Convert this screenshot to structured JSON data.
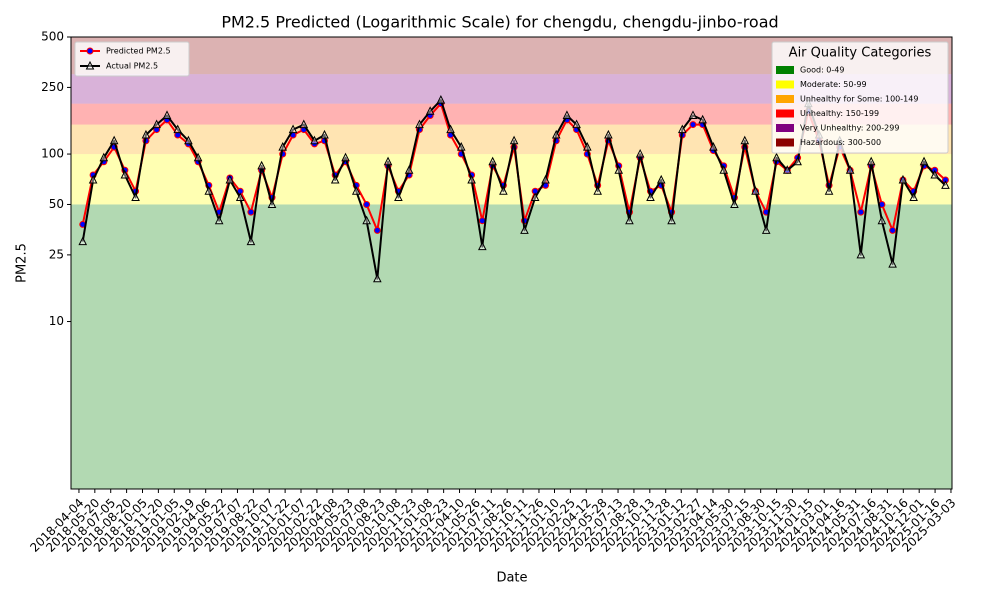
{
  "chart_data": {
    "type": "line",
    "title": "PM2.5 Predicted (Logarithmic Scale) for chengdu, chengdu-jinbo-road",
    "x_label": "Date",
    "y_label": "PM2.5",
    "log_scale": true,
    "ylim": [
      1,
      500
    ],
    "yticks": [
      10,
      25,
      50,
      100,
      250,
      500
    ],
    "xlim": [
      "2018-03-12",
      "2025-03-06"
    ],
    "xticks": [
      "2018-04-04",
      "2018-05-20",
      "2018-07-05",
      "2018-08-20",
      "2018-10-05",
      "2018-11-20",
      "2019-01-05",
      "2019-02-19",
      "2019-04-06",
      "2019-05-22",
      "2019-07-07",
      "2019-08-22",
      "2019-10-07",
      "2019-11-22",
      "2020-01-07",
      "2020-02-22",
      "2020-04-08",
      "2020-05-23",
      "2020-07-08",
      "2020-08-23",
      "2020-10-08",
      "2020-11-23",
      "2021-01-08",
      "2021-02-23",
      "2021-04-10",
      "2021-05-26",
      "2021-07-11",
      "2021-08-26",
      "2021-10-11",
      "2021-11-26",
      "2022-01-10",
      "2022-02-25",
      "2022-04-12",
      "2022-05-28",
      "2022-07-13",
      "2022-08-28",
      "2022-10-13",
      "2022-11-28",
      "2023-01-12",
      "2023-02-27",
      "2023-04-14",
      "2023-05-30",
      "2023-07-15",
      "2023-08-30",
      "2023-10-15",
      "2023-11-30",
      "2024-01-15",
      "2024-03-01",
      "2024-04-16",
      "2024-05-31",
      "2024-07-16",
      "2024-08-31",
      "2024-10-16",
      "2024-12-01",
      "2025-01-16",
      "2025-03-03"
    ],
    "x": [
      "2018-04-15",
      "2018-05-15",
      "2018-06-15",
      "2018-07-15",
      "2018-08-15",
      "2018-09-15",
      "2018-10-15",
      "2018-11-15",
      "2018-12-15",
      "2019-01-15",
      "2019-02-15",
      "2019-03-15",
      "2019-04-15",
      "2019-05-15",
      "2019-06-15",
      "2019-07-15",
      "2019-08-15",
      "2019-09-15",
      "2019-10-15",
      "2019-11-15",
      "2019-12-15",
      "2020-01-15",
      "2020-02-15",
      "2020-03-15",
      "2020-04-15",
      "2020-05-15",
      "2020-06-15",
      "2020-07-15",
      "2020-08-15",
      "2020-09-15",
      "2020-10-15",
      "2020-11-15",
      "2020-12-15",
      "2021-01-15",
      "2021-02-15",
      "2021-03-15",
      "2021-04-15",
      "2021-05-15",
      "2021-06-15",
      "2021-07-15",
      "2021-08-15",
      "2021-09-15",
      "2021-10-15",
      "2021-11-15",
      "2021-12-15",
      "2022-01-15",
      "2022-02-15",
      "2022-03-15",
      "2022-04-15",
      "2022-05-15",
      "2022-06-15",
      "2022-07-15",
      "2022-08-15",
      "2022-09-15",
      "2022-10-15",
      "2022-11-15",
      "2022-12-15",
      "2023-01-15",
      "2023-02-15",
      "2023-03-15",
      "2023-04-15",
      "2023-05-15",
      "2023-06-15",
      "2023-07-15",
      "2023-08-15",
      "2023-09-15",
      "2023-10-15",
      "2023-11-15",
      "2023-12-15",
      "2024-01-15",
      "2024-02-15",
      "2024-03-15",
      "2024-04-15",
      "2024-05-15",
      "2024-06-15",
      "2024-07-15",
      "2024-08-15",
      "2024-09-15",
      "2024-10-15",
      "2024-11-15",
      "2024-12-15",
      "2025-01-15",
      "2025-02-15"
    ],
    "series": [
      {
        "name": "Predicted PM2.5",
        "color": "#ff0000",
        "marker": "circle",
        "marker_color": "#0000ff",
        "values": [
          38,
          75,
          90,
          110,
          80,
          60,
          120,
          140,
          160,
          130,
          115,
          90,
          65,
          45,
          72,
          60,
          45,
          80,
          55,
          100,
          130,
          140,
          115,
          120,
          75,
          90,
          65,
          50,
          35,
          85,
          60,
          75,
          140,
          170,
          200,
          130,
          100,
          75,
          40,
          85,
          65,
          110,
          40,
          60,
          65,
          120,
          160,
          140,
          100,
          65,
          120,
          85,
          45,
          95,
          60,
          65,
          45,
          130,
          150,
          150,
          105,
          85,
          55,
          110,
          60,
          45,
          90,
          80,
          95,
          180,
          120,
          65,
          110,
          80,
          45,
          85,
          50,
          35,
          70,
          60,
          85,
          80,
          70
        ]
      },
      {
        "name": "Actual PM2.5",
        "color": "#000000",
        "marker": "triangle",
        "marker_color": "#ffffff",
        "values": [
          30,
          70,
          95,
          120,
          75,
          55,
          130,
          150,
          170,
          140,
          120,
          95,
          60,
          40,
          70,
          55,
          30,
          85,
          50,
          110,
          140,
          150,
          120,
          130,
          70,
          95,
          60,
          40,
          18,
          90,
          55,
          80,
          150,
          180,
          210,
          140,
          110,
          70,
          28,
          90,
          60,
          120,
          35,
          55,
          70,
          130,
          170,
          150,
          110,
          60,
          130,
          80,
          40,
          100,
          55,
          70,
          40,
          140,
          170,
          160,
          110,
          80,
          50,
          120,
          60,
          35,
          95,
          80,
          90,
          200,
          130,
          60,
          120,
          80,
          25,
          90,
          40,
          22,
          70,
          55,
          90,
          75,
          65
        ]
      }
    ],
    "legend": "upper left",
    "bands_title": "Air Quality Categories",
    "bands_legend": "upper right",
    "bands": [
      {
        "name": "Good: 0-49",
        "color": "#008000",
        "from": 0,
        "to": 50
      },
      {
        "name": "Moderate: 50-99",
        "color": "#ffff00",
        "from": 50,
        "to": 100
      },
      {
        "name": "Unhealthy for Some: 100-149",
        "color": "#ffa500",
        "from": 100,
        "to": 150
      },
      {
        "name": "Unhealthy: 150-199",
        "color": "#ff0000",
        "from": 150,
        "to": 200
      },
      {
        "name": "Very Unhealthy: 200-299",
        "color": "#800080",
        "from": 200,
        "to": 300
      },
      {
        "name": "Hazardous: 300-500",
        "color": "#8b0000",
        "from": 300,
        "to": 500
      }
    ]
  }
}
